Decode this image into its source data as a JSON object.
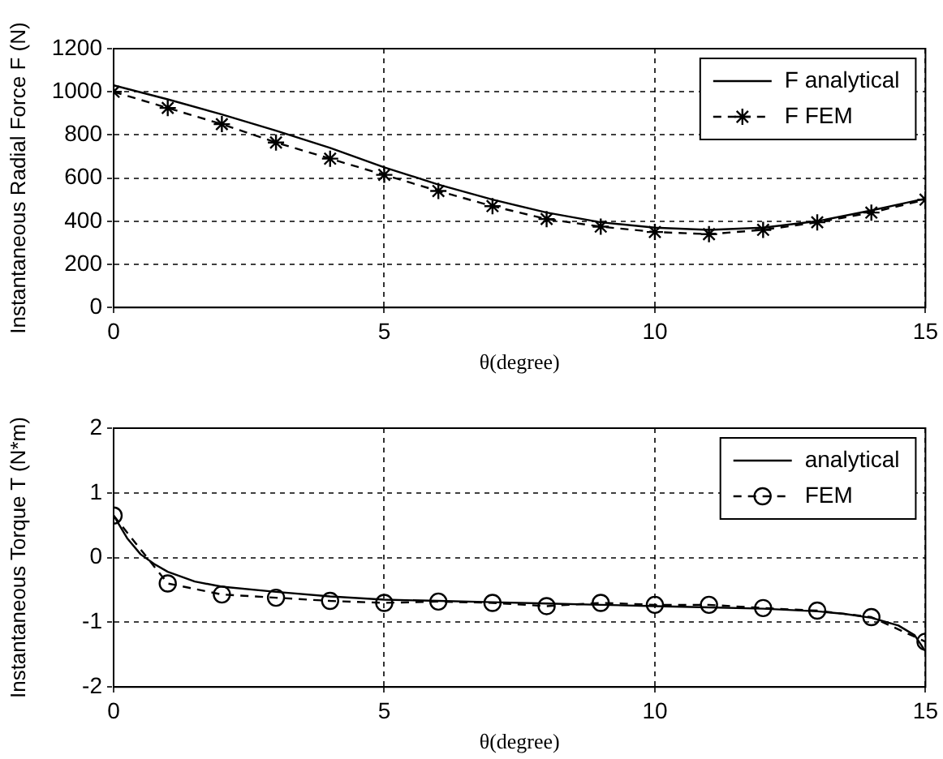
{
  "chart_data": [
    {
      "type": "line",
      "xlabel": "θ(degree)",
      "ylabel": "Instantaneous Radial Force F (N)",
      "xlim": [
        0,
        15
      ],
      "xticks": [
        0,
        5,
        10,
        15
      ],
      "ylim": [
        0,
        1200
      ],
      "yticks": [
        0,
        200,
        400,
        600,
        800,
        1000,
        1200
      ],
      "grid": true,
      "legend": "top right",
      "series": [
        {
          "name": "F analytical",
          "color": "#000000",
          "line_style": "solid",
          "marker": "none",
          "x": [
            0,
            1,
            2,
            3,
            4,
            5,
            6,
            7,
            8,
            9,
            10,
            11,
            12,
            13,
            14,
            15
          ],
          "values": [
            1030,
            965,
            895,
            820,
            740,
            650,
            570,
            500,
            440,
            395,
            370,
            360,
            370,
            400,
            450,
            505
          ]
        },
        {
          "name": "F FEM",
          "color": "#000000",
          "line_style": "dashed",
          "marker": "cross",
          "x": [
            0,
            1,
            2,
            3,
            4,
            5,
            6,
            7,
            8,
            9,
            10,
            11,
            12,
            13,
            14,
            15
          ],
          "values": [
            1000,
            925,
            850,
            765,
            690,
            615,
            540,
            470,
            410,
            375,
            350,
            340,
            360,
            395,
            440,
            500
          ]
        }
      ]
    },
    {
      "type": "line",
      "xlabel": "θ(degree)",
      "ylabel": "Instantaneous Torque T (N*m)",
      "xlim": [
        0,
        15
      ],
      "xticks": [
        0,
        5,
        10,
        15
      ],
      "ylim": [
        -2,
        2
      ],
      "yticks": [
        -2,
        -1,
        0,
        1,
        2
      ],
      "grid": true,
      "legend": "top right",
      "series": [
        {
          "name": "analytical",
          "color": "#000000",
          "line_style": "solid",
          "marker": "none",
          "x": [
            0,
            0.25,
            0.5,
            0.75,
            1,
            1.5,
            2,
            3,
            4,
            5,
            6,
            7,
            8,
            9,
            10,
            11,
            12,
            13,
            13.5,
            14,
            14.5,
            14.8,
            15
          ],
          "values": [
            0.65,
            0.3,
            0.05,
            -0.1,
            -0.22,
            -0.37,
            -0.45,
            -0.53,
            -0.6,
            -0.65,
            -0.67,
            -0.69,
            -0.71,
            -0.73,
            -0.75,
            -0.77,
            -0.79,
            -0.83,
            -0.87,
            -0.93,
            -1.05,
            -1.2,
            -1.45
          ]
        },
        {
          "name": "FEM",
          "color": "#000000",
          "line_style": "dashed",
          "marker": "circle",
          "x": [
            0,
            1,
            2,
            3,
            4,
            5,
            6,
            7,
            8,
            9,
            10,
            11,
            12,
            13,
            14,
            15
          ],
          "values": [
            0.65,
            -0.4,
            -0.57,
            -0.62,
            -0.67,
            -0.7,
            -0.68,
            -0.7,
            -0.75,
            -0.7,
            -0.73,
            -0.73,
            -0.78,
            -0.82,
            -0.92,
            -1.3
          ]
        }
      ]
    }
  ]
}
